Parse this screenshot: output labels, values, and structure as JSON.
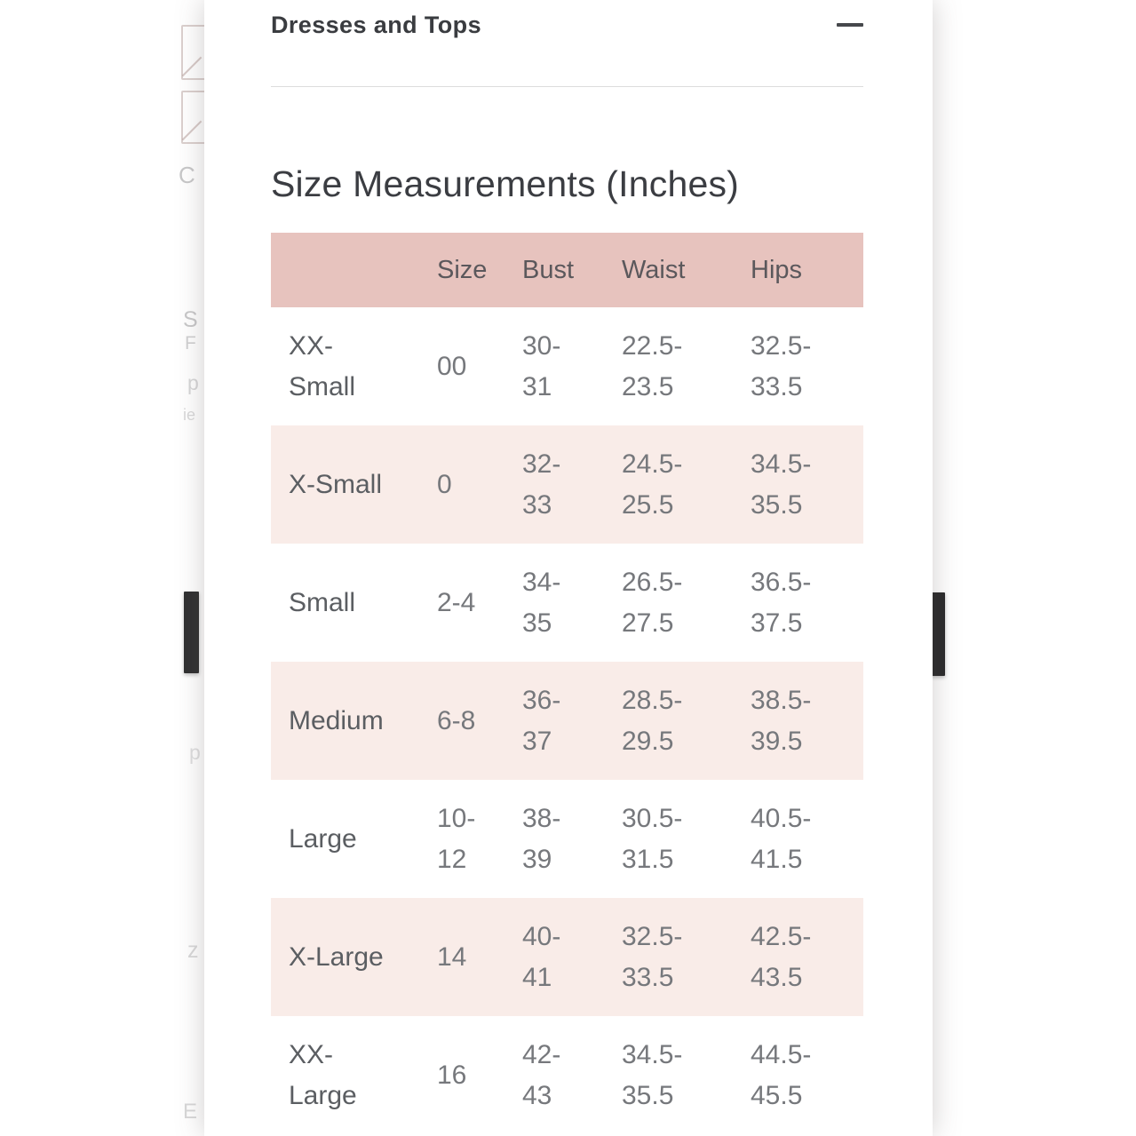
{
  "page": {
    "accordion_title": "Dresses and Tops",
    "section_title": "Size Measurements (Inches)"
  },
  "table": {
    "columns": [
      "Size",
      "Bust",
      "Waist",
      "Hips"
    ],
    "rows": [
      {
        "name": "XX-\nSmall",
        "size": "00",
        "bust": "30-\n31",
        "waist": "22.5-\n23.5",
        "hips": "32.5-\n33.5"
      },
      {
        "name": "X-Small",
        "size": "0",
        "bust": "32-\n33",
        "waist": "24.5-\n25.5",
        "hips": "34.5-\n35.5"
      },
      {
        "name": "Small",
        "size": "2-4",
        "bust": "34-\n35",
        "waist": "26.5-\n27.5",
        "hips": "36.5-\n37.5"
      },
      {
        "name": "Medium",
        "size": "6-8",
        "bust": "36-\n37",
        "waist": "28.5-\n29.5",
        "hips": "38.5-\n39.5"
      },
      {
        "name": "Large",
        "size": "10-\n12",
        "bust": "38-\n39",
        "waist": "30.5-\n31.5",
        "hips": "40.5-\n41.5"
      },
      {
        "name": "X-Large",
        "size": "14",
        "bust": "40-\n41",
        "waist": "32.5-\n33.5",
        "hips": "42.5-\n43.5"
      },
      {
        "name": "XX-\nLarge",
        "size": "16",
        "bust": "42-\n43",
        "waist": "34.5-\n35.5",
        "hips": "44.5-\n45.5"
      }
    ]
  },
  "background": {
    "fragments": [
      "C",
      "S",
      "F",
      "p",
      "ie",
      "p",
      "z",
      "E"
    ]
  },
  "colors": {
    "table_header_bg": "#e7c3be",
    "table_alt_row_bg": "#f9ece8",
    "heading_text": "#3a3c40",
    "cell_text": "#6b6d71",
    "dark_bar": "#2e2e2f"
  }
}
